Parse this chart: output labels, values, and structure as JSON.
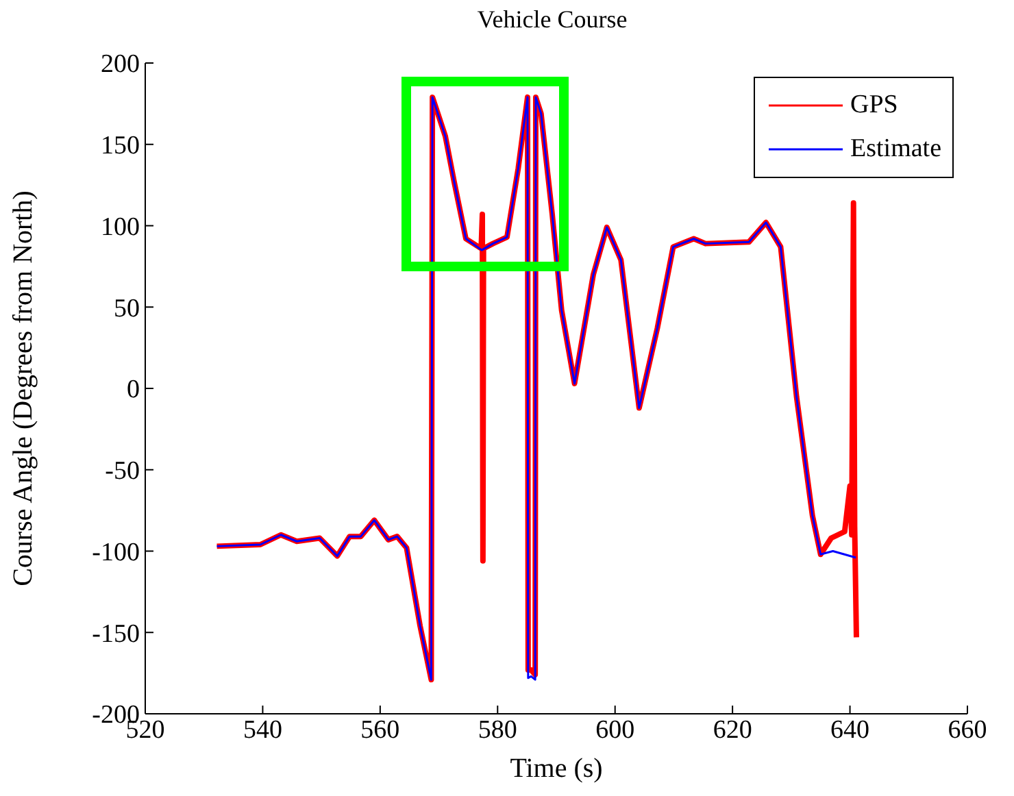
{
  "chart_data": {
    "type": "line",
    "title": "Vehicle Course",
    "xlabel": "Time (s)",
    "ylabel": "Course Angle (Degrees from North)",
    "xlim": [
      520,
      660
    ],
    "xticks": [
      520,
      540,
      560,
      580,
      600,
      620,
      640,
      660
    ],
    "ylim": [
      -200,
      200
    ],
    "yticks": [
      -200,
      -150,
      -100,
      -50,
      0,
      50,
      100,
      150,
      200
    ],
    "grid": false,
    "legend": "top right",
    "marker": "none",
    "line_style": "solid",
    "series": [
      {
        "name": "GPS",
        "color": "#ff0000",
        "x": [
          532.2,
          539.6,
          543.1,
          545.8,
          549.7,
          552.7,
          554.8,
          556.7,
          559.0,
          561.4,
          562.9,
          564.5,
          566.8,
          568.7,
          568.9,
          571.1,
          572.6,
          574.6,
          577.2,
          577.4,
          577.5,
          577.6,
          579.2,
          581.6,
          583.5,
          585.1,
          585.2,
          585.7,
          586.4,
          586.5,
          587.4,
          589.3,
          590.9,
          593.1,
          596.3,
          598.6,
          601.0,
          604.1,
          607.2,
          609.9,
          613.4,
          615.4,
          622.8,
          625.7,
          628.2,
          630.9,
          633.6,
          635.0,
          636.8,
          639.1,
          640.0,
          640.3,
          640.6,
          640.8,
          641.1
        ],
        "values": [
          -97,
          -96,
          -90,
          -94,
          -92,
          -103,
          -91,
          -91,
          -81,
          -93,
          -91,
          -98,
          -146,
          -179,
          179,
          155,
          127,
          92,
          86,
          107,
          -106,
          86,
          89,
          93,
          135,
          179,
          -173,
          -173,
          -176,
          179,
          169,
          107,
          48,
          3,
          70,
          99,
          79,
          -12,
          37,
          87,
          92,
          89,
          90,
          102,
          87,
          -5,
          -78,
          -102,
          -92,
          -88,
          -60,
          -90,
          114,
          -85,
          -153
        ]
      },
      {
        "name": "Estimate",
        "color": "#0000ff",
        "x": [
          532.2,
          539.6,
          543.1,
          545.8,
          549.7,
          552.7,
          554.8,
          556.7,
          559.0,
          561.4,
          562.9,
          564.5,
          566.8,
          568.7,
          568.9,
          571.1,
          572.6,
          574.6,
          577.3,
          579.2,
          581.6,
          583.5,
          585.1,
          585.2,
          585.7,
          586.4,
          586.5,
          587.4,
          589.3,
          590.9,
          593.1,
          596.3,
          598.6,
          601.0,
          604.1,
          607.2,
          609.9,
          613.4,
          615.4,
          622.8,
          625.7,
          628.2,
          630.9,
          633.6,
          635.0,
          637.1,
          641.0
        ],
        "values": [
          -97,
          -96,
          -90,
          -94,
          -92,
          -103,
          -91,
          -91,
          -81,
          -93,
          -91,
          -98,
          -146,
          -179,
          179,
          155,
          127,
          92,
          85,
          89,
          93,
          135,
          179,
          -178,
          -177,
          -179,
          179,
          169,
          107,
          48,
          3,
          70,
          99,
          79,
          -12,
          37,
          87,
          92,
          89,
          90,
          102,
          87,
          -5,
          -78,
          -102,
          -100,
          -104
        ]
      }
    ]
  }
}
